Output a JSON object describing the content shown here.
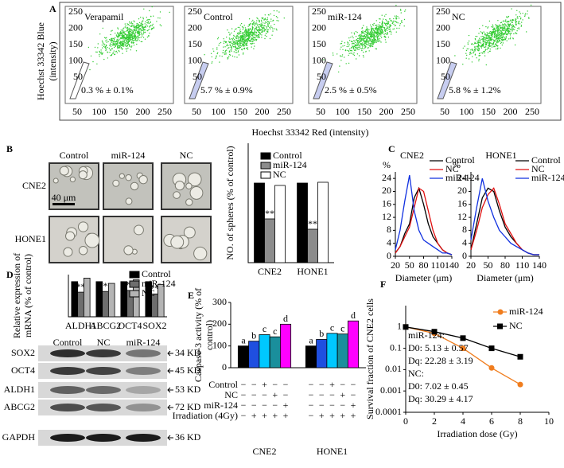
{
  "panel_labels": [
    "A",
    "B",
    "C",
    "D",
    "E",
    "F"
  ],
  "flow": {
    "ylabel": [
      "Hoechst  33342 Blue",
      "(intensity)"
    ],
    "xlabel": "Hoechst  33342 Red (intensity)",
    "xticks": [
      50,
      100,
      150,
      200,
      250
    ],
    "yticks": [
      50,
      100,
      150,
      200,
      250
    ],
    "plots": [
      {
        "title": "Verapamil",
        "percent": "0.3 % ± 0.1%"
      },
      {
        "title": "Control",
        "percent": "5.7 % ± 0.9%"
      },
      {
        "title": "miR-124",
        "percent": "2.5 % ± 0.5%"
      },
      {
        "title": "NC",
        "percent": "5.8 % ± 1.2%"
      }
    ]
  },
  "spheres": {
    "columns": [
      "Control",
      "miR-124",
      "NC"
    ],
    "rows": [
      "CNE2",
      "HONE1"
    ],
    "scale_bar": "40 μm"
  },
  "western_blot": {
    "columns": [
      "Control",
      "NC",
      "miR-124"
    ],
    "rows": [
      {
        "protein": "SOX2",
        "size": "34 KD"
      },
      {
        "protein": "OCT4",
        "size": "45 KD"
      },
      {
        "protein": "ALDH1",
        "size": "53 KD"
      },
      {
        "protein": "ABCG2",
        "size": "72 KD"
      },
      {
        "protein": "GAPDH",
        "size": "36 KD"
      }
    ]
  },
  "chart_data": [
    {
      "type": "bar",
      "ylabel": "NO. of spheres (% of control)",
      "categories": [
        "CNE2",
        "HONE1"
      ],
      "series": [
        {
          "name": "Control",
          "color": "#000000",
          "values": [
            100,
            100
          ]
        },
        {
          "name": "miR-124",
          "color": "#8c8c8c",
          "values": [
            55,
            42
          ],
          "annotations": [
            "**",
            "**"
          ]
        },
        {
          "name": "NC",
          "color": "#ffffff",
          "values": [
            97,
            101
          ]
        }
      ],
      "ylim": [
        0,
        150
      ],
      "legend": "upper right"
    },
    {
      "type": "line",
      "title": "CNE2",
      "ylabel": "%",
      "xlabel": "Diameter (μm)",
      "x": [
        20,
        30,
        40,
        50,
        60,
        70,
        80,
        90,
        100,
        110,
        120,
        130,
        140
      ],
      "series": [
        {
          "name": "Control",
          "color": "#000000",
          "values": [
            1,
            3,
            7,
            10,
            18,
            21,
            16,
            10,
            6,
            4,
            2,
            1,
            0.5
          ]
        },
        {
          "name": "NC",
          "color": "#e01010",
          "values": [
            1,
            3,
            6,
            9,
            15,
            21,
            20,
            14,
            8,
            4,
            2,
            1,
            0.5
          ]
        },
        {
          "name": "miR-124",
          "color": "#1030e0",
          "values": [
            2,
            8,
            17,
            25,
            14,
            8,
            5,
            4,
            3,
            2,
            1,
            1,
            0.5
          ]
        }
      ],
      "xlim": [
        20,
        140
      ],
      "xticks": [
        20,
        50,
        80,
        110,
        140
      ],
      "ylim": [
        0,
        26
      ],
      "yticks": [
        0,
        4,
        8,
        12,
        16,
        20,
        24
      ],
      "legend": "upper right"
    },
    {
      "type": "line",
      "title": "HONE1",
      "ylabel": "%",
      "xlabel": "Diameter (μm)",
      "x": [
        20,
        30,
        40,
        50,
        60,
        70,
        80,
        90,
        100,
        110,
        120,
        130,
        140
      ],
      "series": [
        {
          "name": "Control",
          "color": "#000000",
          "values": [
            2,
            10,
            18,
            21,
            20,
            14,
            9,
            6,
            4,
            2,
            1,
            0.5,
            0.5
          ]
        },
        {
          "name": "NC",
          "color": "#e01010",
          "values": [
            2,
            8,
            15,
            19,
            21,
            16,
            10,
            7,
            4,
            2,
            1,
            0.5,
            0.5
          ]
        },
        {
          "name": "miR-124",
          "color": "#1030e0",
          "values": [
            5,
            15,
            24,
            17,
            12,
            8,
            6,
            4,
            3,
            2,
            1,
            0.5,
            0.5
          ]
        }
      ],
      "xlim": [
        20,
        140
      ],
      "xticks": [
        20,
        50,
        80,
        110,
        140
      ],
      "ylim": [
        0,
        26
      ],
      "yticks": [
        0,
        4,
        8,
        12,
        16,
        20,
        24
      ],
      "legend": "upper right"
    },
    {
      "type": "bar",
      "ylabel": [
        "Relative expression of",
        "mRNA (% of control)"
      ],
      "categories": [
        "ALDH1",
        "ABCG2",
        "OCT4",
        "SOX2"
      ],
      "series": [
        {
          "name": "Control",
          "color": "#000000",
          "values": [
            100,
            100,
            100,
            100
          ]
        },
        {
          "name": "miR-124",
          "color": "#6e6e6e",
          "values": [
            70,
            72,
            75,
            65
          ],
          "annotations": [
            "**",
            "*",
            "**",
            "**"
          ]
        },
        {
          "name": "NC",
          "color": "#b4b4b4",
          "values": [
            110,
            95,
            105,
            92
          ]
        }
      ],
      "ylim": [
        0,
        120
      ],
      "legend": "upper right"
    },
    {
      "type": "bar",
      "ylabel": [
        "Caspase-3 activity (% of",
        "control)"
      ],
      "categories": [
        "CNE2",
        "HONE1"
      ],
      "series": [
        {
          "color": "#000000",
          "values": [
            100,
            100
          ],
          "annotations": [
            "a",
            "a"
          ]
        },
        {
          "color": "#1f4fe0",
          "values": [
            122,
            130
          ],
          "annotations": [
            "b",
            "b"
          ]
        },
        {
          "color": "#00c8ff",
          "values": [
            152,
            158
          ],
          "annotations": [
            "c",
            "c"
          ]
        },
        {
          "color": "#1a8f9c",
          "values": [
            142,
            155
          ],
          "annotations": [
            "c",
            "c"
          ]
        },
        {
          "color": "#ff00ff",
          "values": [
            200,
            215
          ],
          "annotations": [
            "d",
            "d"
          ]
        }
      ],
      "ylim": [
        0,
        300
      ],
      "yticks": [
        0,
        100,
        200,
        300
      ],
      "treatments": [
        {
          "label": "Control",
          "signs": [
            "−",
            "−",
            "+",
            "−",
            "−"
          ]
        },
        {
          "label": "NC",
          "signs": [
            "−",
            "−",
            "−",
            "+",
            "−"
          ]
        },
        {
          "label": "miR-124",
          "signs": [
            "−",
            "−",
            "−",
            "−",
            "+"
          ]
        },
        {
          "label": "Irradiation (4Gy)",
          "signs": [
            "−",
            "+",
            "+",
            "+",
            "+"
          ]
        }
      ]
    },
    {
      "type": "line",
      "log_y": true,
      "ylabel": "Survival fraction of CNE2 cells",
      "xlabel": "Irradiation dose (Gy)",
      "x": [
        0,
        2,
        4,
        6,
        8
      ],
      "series": [
        {
          "name": "miR-124",
          "color": "#f07d1e",
          "marker": "circle",
          "values": [
            1,
            0.5,
            0.1,
            0.012,
            0.002
          ]
        },
        {
          "name": "NC",
          "color": "#000000",
          "marker": "square",
          "values": [
            1,
            0.6,
            0.3,
            0.1,
            0.04
          ]
        }
      ],
      "xlim": [
        0,
        10
      ],
      "xticks": [
        0,
        2,
        4,
        6,
        8,
        10
      ],
      "ylim": [
        0.0001,
        10
      ],
      "yticks": [
        0.0001,
        0.001,
        0.01,
        0.1,
        1
      ],
      "annotations": [
        "miR-124:",
        "D0: 5.13 ± 0.57",
        "Dq: 22.28 ± 3.19",
        "NC:",
        "D0: 7.02 ± 0.45",
        "Dq: 30.29 ± 4.17"
      ],
      "legend": "upper right"
    }
  ]
}
